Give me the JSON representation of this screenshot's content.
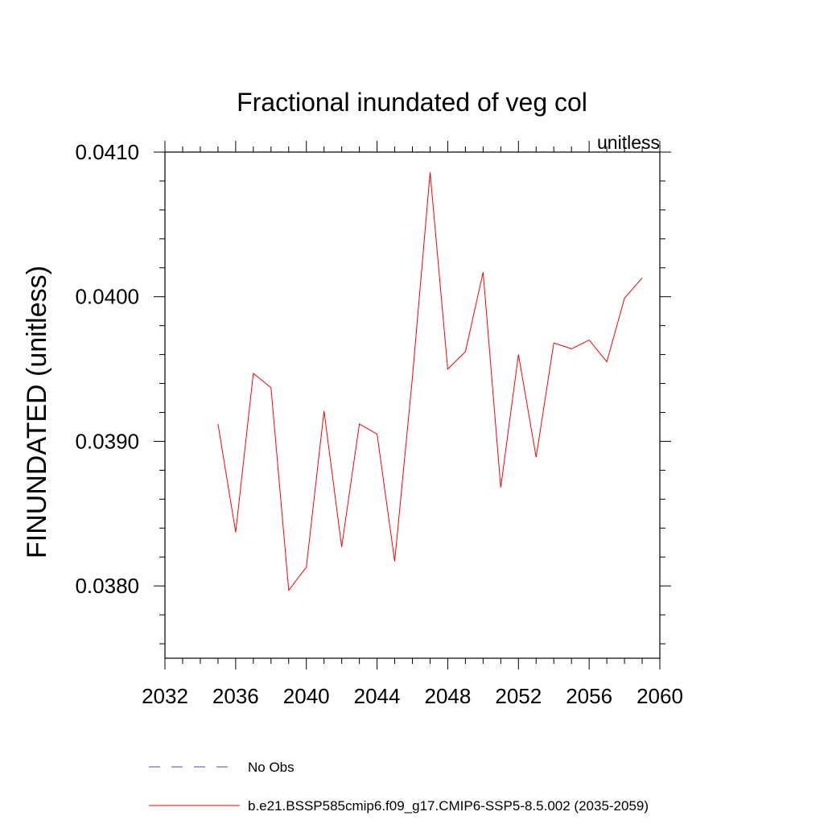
{
  "chart_data": {
    "type": "line",
    "title": "Fractional inundated of veg col",
    "units_label": "unitless",
    "ylabel": "FINUNDATED  (unitless)",
    "xlabel": "",
    "xlim": [
      2032,
      2060
    ],
    "ylim": [
      0.0375,
      0.041
    ],
    "x_ticks": [
      2032,
      2036,
      2040,
      2044,
      2048,
      2052,
      2056,
      2060
    ],
    "x_tick_labels": [
      "2032",
      "2036",
      "2040",
      "2044",
      "2048",
      "2052",
      "2056",
      "2060"
    ],
    "x_minor_step": 1,
    "y_ticks": [
      0.038,
      0.039,
      0.04,
      0.041
    ],
    "y_tick_labels": [
      "0.0380",
      "0.0390",
      "0.0400",
      "0.0410"
    ],
    "y_minor_step": 0.0002,
    "grid": false,
    "series": [
      {
        "name": "No Obs",
        "color": "#4b4bb4",
        "dash": "dashed",
        "x": [],
        "y": []
      },
      {
        "name": "b.e21.BSSP585cmip6.f09_g17.CMIP6-SSP5-8.5.002 (2035-2059)",
        "color": "#ff0000",
        "dash": "solid",
        "x": [
          2035,
          2036,
          2037,
          2038,
          2039,
          2040,
          2041,
          2042,
          2043,
          2044,
          2045,
          2046,
          2047,
          2048,
          2049,
          2050,
          2051,
          2052,
          2053,
          2054,
          2055,
          2056,
          2057,
          2058,
          2059
        ],
        "y": [
          0.03912,
          0.03837,
          0.03947,
          0.03937,
          0.03797,
          0.03813,
          0.03921,
          0.03827,
          0.03912,
          0.03905,
          0.03817,
          0.03944,
          0.04086,
          0.0395,
          0.03962,
          0.04017,
          0.03868,
          0.0396,
          0.03889,
          0.03968,
          0.03964,
          0.0397,
          0.03955,
          0.03999,
          0.04013
        ]
      }
    ],
    "legend": {
      "placement": "bottom",
      "entries": [
        {
          "label": "No Obs"
        },
        {
          "label": "b.e21.BSSP585cmip6.f09_g17.CMIP6-SSP5-8.5.002 (2035-2059)"
        }
      ]
    }
  }
}
